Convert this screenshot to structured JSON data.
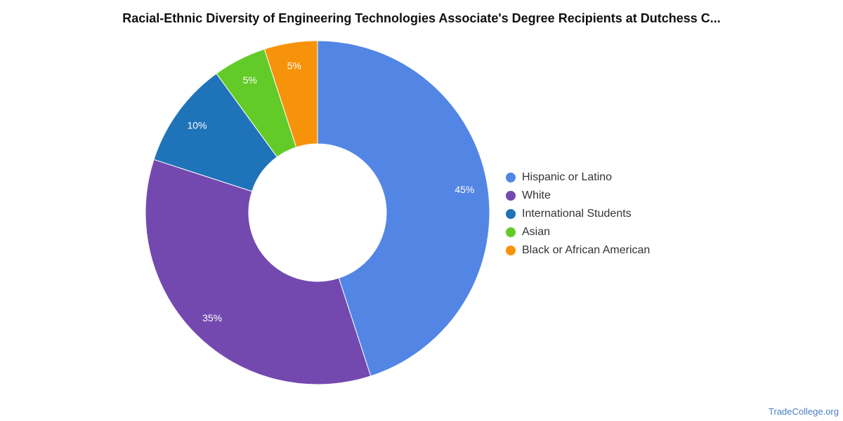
{
  "chart_data": {
    "type": "pie",
    "title": "Racial-Ethnic Diversity of Engineering Technologies Associate's Degree Recipients at Dutchess C...",
    "donut": true,
    "legend_position": "right",
    "slices": [
      {
        "name": "Hispanic or Latino",
        "value": 45,
        "label": "45%",
        "color": "#5386e4"
      },
      {
        "name": "White",
        "value": 35,
        "label": "35%",
        "color": "#7349b0"
      },
      {
        "name": "International Students",
        "value": 10,
        "label": "10%",
        "color": "#1f73b8"
      },
      {
        "name": "Asian",
        "value": 5,
        "label": "5%",
        "color": "#63cb28"
      },
      {
        "name": "Black or African American",
        "value": 5,
        "label": "5%",
        "color": "#f7930a"
      }
    ]
  },
  "footer": {
    "source": "TradeCollege.org"
  }
}
